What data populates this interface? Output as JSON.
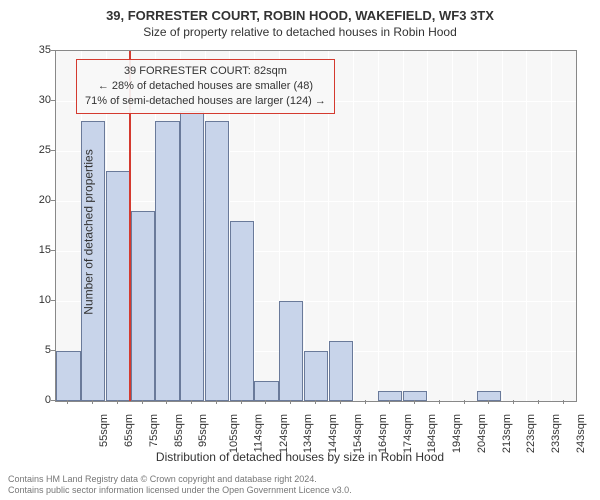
{
  "title_main": "39, FORRESTER COURT, ROBIN HOOD, WAKEFIELD, WF3 3TX",
  "title_sub": "Size of property relative to detached houses in Robin Hood",
  "y_axis_label": "Number of detached properties",
  "x_axis_label": "Distribution of detached houses by size in Robin Hood",
  "annotation": {
    "line1": "39 FORRESTER COURT: 82sqm",
    "line2": "← 28% of detached houses are smaller (48)",
    "line3": "71% of semi-detached houses are larger (124) →"
  },
  "footer_line1": "Contains HM Land Registry data © Crown copyright and database right 2024.",
  "footer_line2": "Contains public sector information licensed under the Open Government Licence v3.0.",
  "chart": {
    "type": "histogram",
    "x_categories": [
      "55sqm",
      "65sqm",
      "75sqm",
      "85sqm",
      "95sqm",
      "105sqm",
      "114sqm",
      "124sqm",
      "134sqm",
      "144sqm",
      "154sqm",
      "164sqm",
      "174sqm",
      "184sqm",
      "194sqm",
      "204sqm",
      "213sqm",
      "223sqm",
      "233sqm",
      "243sqm",
      "253sqm"
    ],
    "values": [
      5,
      28,
      23,
      19,
      28,
      29,
      28,
      18,
      2,
      10,
      5,
      6,
      0,
      1,
      1,
      0,
      0,
      1,
      0,
      0,
      0
    ],
    "ylim": [
      0,
      35
    ],
    "ytick_step": 5,
    "bar_fill": "#c8d4ea",
    "bar_stroke": "#6a7a9a",
    "background": "#f7f7f7",
    "grid_color": "#ffffff",
    "ref_line_color": "#d43a2f",
    "ref_line_after_index": 2,
    "title_fontsize": 13,
    "label_fontsize": 12,
    "tick_fontsize": 11
  }
}
